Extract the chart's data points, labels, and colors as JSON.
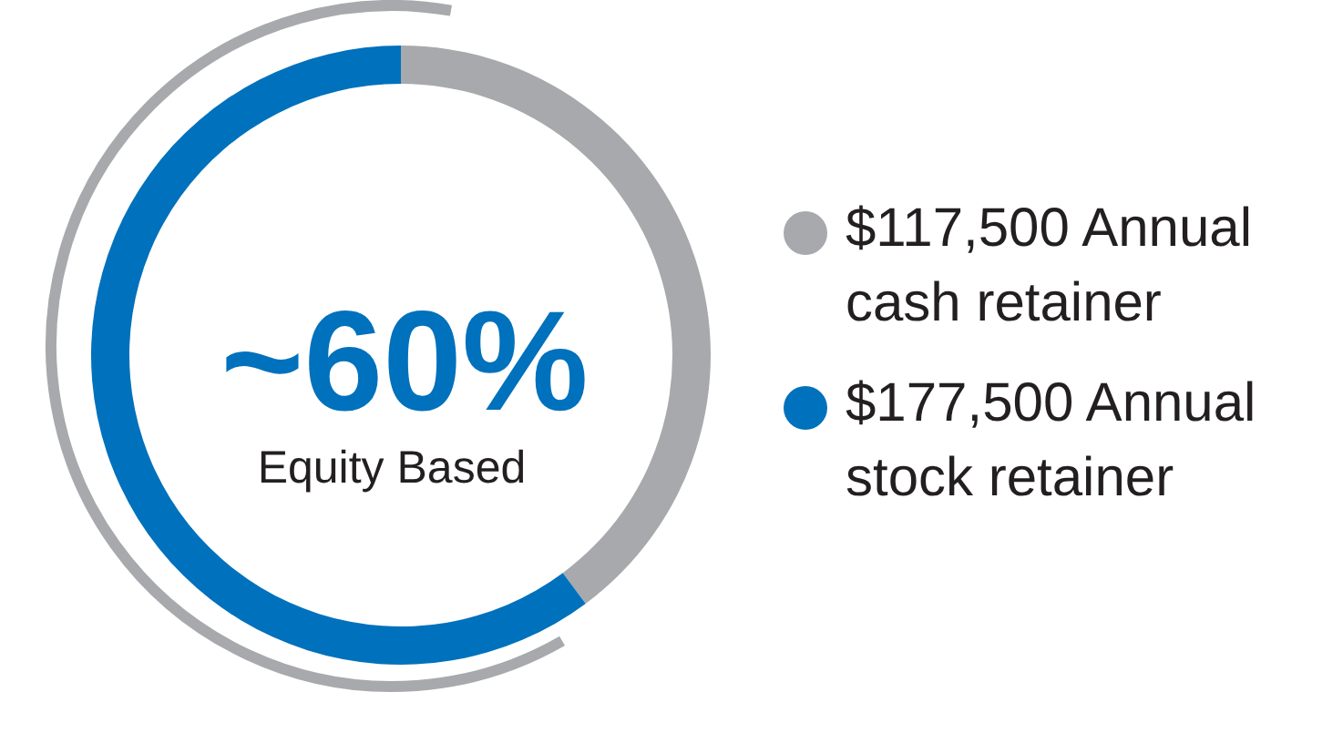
{
  "chart_data": {
    "type": "donut",
    "categories": [
      "$117,500 Annual cash retainer",
      "$177,500 Annual stock retainer"
    ],
    "values": [
      117500,
      177500
    ],
    "colors": [
      "#a7a9ac",
      "#0071bc"
    ],
    "annotations": [
      "~60%",
      "Equity Based"
    ],
    "legend": "right"
  }
}
